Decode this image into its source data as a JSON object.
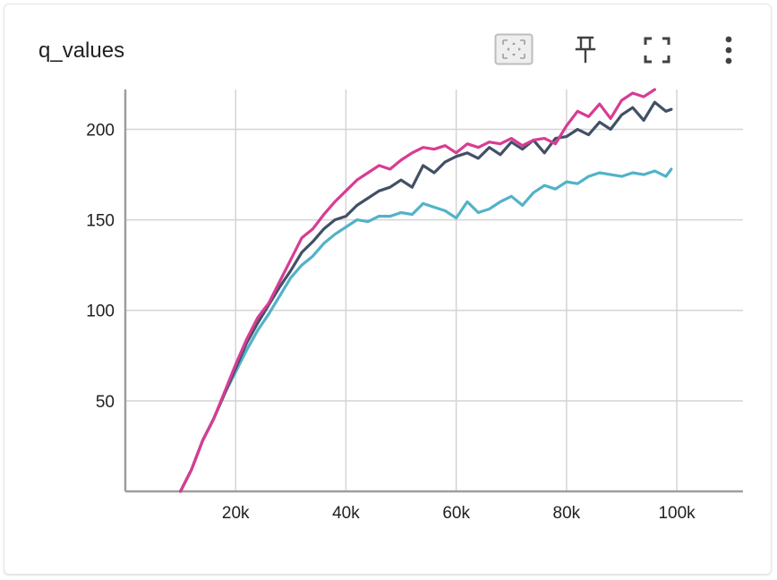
{
  "card": {
    "title": "q_values",
    "toolbar": [
      {
        "name": "fit-domain-button",
        "icon": "fit-to-data-icon"
      },
      {
        "name": "pin-button",
        "icon": "pin-icon"
      },
      {
        "name": "fullscreen-button",
        "icon": "fullscreen-icon"
      },
      {
        "name": "more-options-button",
        "icon": "more-vert-icon"
      }
    ]
  },
  "colors": {
    "series_1": "#d83c93",
    "series_2": "#425066",
    "series_3": "#52b2c9",
    "grid": "#d4d4d4",
    "axis": "#9e9e9e",
    "toolbar_icon": "#424242",
    "fit_button_border": "#bdbdbd"
  },
  "chart_data": {
    "type": "line",
    "title": "q_values",
    "xlabel": "",
    "ylabel": "",
    "xlim": [
      0,
      112000
    ],
    "ylim": [
      0,
      222
    ],
    "grid": true,
    "x_ticks": [
      20000,
      40000,
      60000,
      80000,
      100000
    ],
    "x_tick_labels": [
      "20k",
      "40k",
      "60k",
      "80k",
      "100k"
    ],
    "y_ticks": [
      50,
      100,
      150,
      200
    ],
    "y_tick_labels": [
      "50",
      "100",
      "150",
      "200"
    ],
    "series": [
      {
        "color": "#d83c93",
        "x": [
          10000,
          12000,
          14000,
          16000,
          18000,
          20000,
          22000,
          24000,
          26000,
          28000,
          30000,
          32000,
          34000,
          36000,
          38000,
          40000,
          42000,
          44000,
          46000,
          48000,
          50000,
          52000,
          54000,
          56000,
          58000,
          60000,
          62000,
          64000,
          66000,
          68000,
          70000,
          72000,
          74000,
          76000,
          78000,
          80000,
          82000,
          84000,
          86000,
          88000,
          90000,
          92000,
          94000,
          96000
        ],
        "y": [
          0,
          12,
          28,
          40,
          55,
          70,
          84,
          96,
          104,
          116,
          128,
          140,
          145,
          153,
          160,
          166,
          172,
          176,
          180,
          178,
          183,
          187,
          190,
          189,
          191,
          187,
          192,
          190,
          193,
          192,
          195,
          191,
          194,
          195,
          192,
          202,
          210,
          207,
          214,
          206,
          216,
          220,
          218,
          222
        ]
      },
      {
        "color": "#425066",
        "x": [
          10000,
          12000,
          14000,
          16000,
          18000,
          20000,
          22000,
          24000,
          26000,
          28000,
          30000,
          32000,
          34000,
          36000,
          38000,
          40000,
          42000,
          44000,
          46000,
          48000,
          50000,
          52000,
          54000,
          56000,
          58000,
          60000,
          62000,
          64000,
          66000,
          68000,
          70000,
          72000,
          74000,
          76000,
          78000,
          80000,
          82000,
          84000,
          86000,
          88000,
          90000,
          92000,
          94000,
          96000,
          98000,
          99000
        ],
        "y": [
          0,
          12,
          28,
          40,
          54,
          68,
          82,
          93,
          103,
          113,
          122,
          132,
          138,
          145,
          150,
          152,
          158,
          162,
          166,
          168,
          172,
          168,
          180,
          176,
          182,
          185,
          187,
          184,
          190,
          186,
          193,
          189,
          194,
          187,
          195,
          196,
          200,
          197,
          204,
          200,
          208,
          212,
          205,
          215,
          210,
          211
        ]
      },
      {
        "color": "#52b2c9",
        "x": [
          10000,
          12000,
          14000,
          16000,
          18000,
          20000,
          22000,
          24000,
          26000,
          28000,
          30000,
          32000,
          34000,
          36000,
          38000,
          40000,
          42000,
          44000,
          46000,
          48000,
          50000,
          52000,
          54000,
          56000,
          58000,
          60000,
          62000,
          64000,
          66000,
          68000,
          70000,
          72000,
          74000,
          76000,
          78000,
          80000,
          82000,
          84000,
          86000,
          88000,
          90000,
          92000,
          94000,
          96000,
          98000,
          99000
        ],
        "y": [
          0,
          12,
          28,
          40,
          54,
          66,
          78,
          89,
          98,
          108,
          118,
          125,
          130,
          137,
          142,
          146,
          150,
          149,
          152,
          152,
          154,
          153,
          159,
          157,
          155,
          151,
          160,
          154,
          156,
          160,
          163,
          158,
          165,
          169,
          167,
          171,
          170,
          174,
          176,
          175,
          174,
          176,
          175,
          177,
          174,
          178
        ]
      }
    ]
  }
}
